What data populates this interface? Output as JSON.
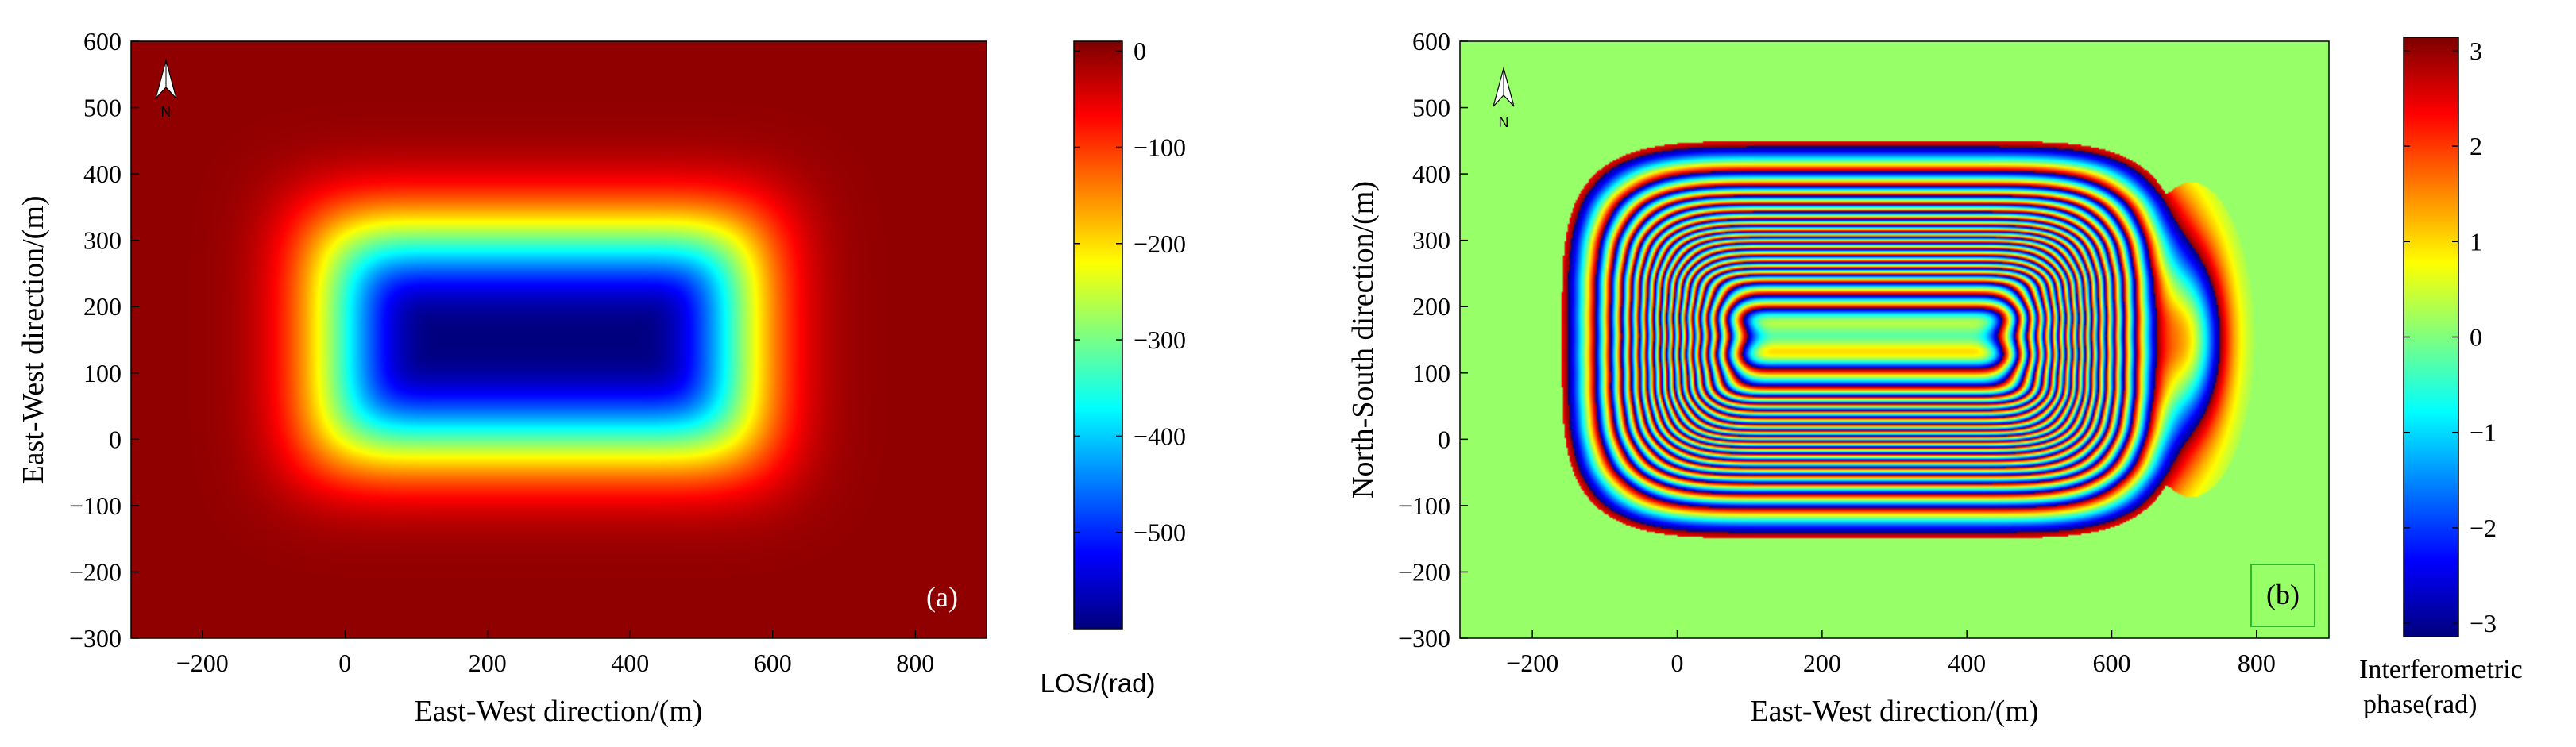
{
  "chart_data": [
    {
      "type": "heatmap",
      "panel_label": "(a)",
      "title": "",
      "xlabel": "East-West direction/(m)",
      "ylabel": "East-West direction/(m)",
      "xlim": [
        -300,
        900
      ],
      "ylim": [
        -300,
        600
      ],
      "xticks": [
        -200,
        0,
        200,
        400,
        600,
        800
      ],
      "yticks": [
        -300,
        -200,
        -100,
        0,
        100,
        200,
        300,
        400,
        500,
        600
      ],
      "north_arrow": "N",
      "field": {
        "description": "LOS deformation basin",
        "center_x": 270,
        "center_y": 150,
        "half_length_x": 300,
        "half_width_y": 170,
        "min_value": -600,
        "max_value": 0
      },
      "colorbar": {
        "label": "LOS/(rad)",
        "colormap": "jet",
        "range": [
          -600,
          10
        ],
        "ticks": [
          0,
          -100,
          -200,
          -300,
          -400,
          -500
        ],
        "tick_labels": [
          "0",
          "−100",
          "−200",
          "−300",
          "−400",
          "−500"
        ]
      }
    },
    {
      "type": "heatmap",
      "panel_label": "(b)",
      "title": "",
      "xlabel": "East-West direction/(m)",
      "ylabel": "North-South direction/(m)",
      "xlim": [
        -300,
        900
      ],
      "ylim": [
        -300,
        600
      ],
      "xticks": [
        -200,
        0,
        200,
        400,
        600,
        800
      ],
      "yticks": [
        -300,
        -200,
        -100,
        0,
        100,
        200,
        300,
        400,
        500,
        600
      ],
      "north_arrow": "N",
      "field": {
        "description": "wrapped interferometric phase of basin",
        "center_x": 270,
        "center_y": 150,
        "half_length_x": 300,
        "half_width_y": 170,
        "lobe_center_x": 710,
        "lobe_center_y": 150
      },
      "colorbar": {
        "label_line1": "Interferometric",
        "label_line2": "phase(rad)",
        "colormap": "jet",
        "range": [
          -3.14,
          3.14
        ],
        "ticks": [
          3,
          2,
          1,
          0,
          -1,
          -2,
          -3
        ],
        "tick_labels": [
          "3",
          "2",
          "1",
          "0",
          "−1",
          "−2",
          "−3"
        ]
      }
    }
  ],
  "colors": {
    "jet_dark_red": "#800000",
    "jet_green": "#00ff7f",
    "axis": "#000000",
    "panel_b_label_box": "#2eb82e"
  }
}
